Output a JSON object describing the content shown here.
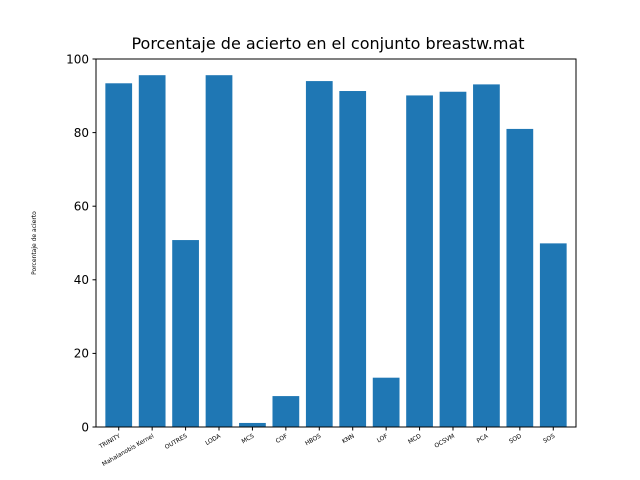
{
  "chart_data": {
    "type": "bar",
    "title": "Porcentaje de acierto en el conjunto breastw.mat",
    "xlabel": "",
    "ylabel": "Porcentaje de acierto",
    "ylim": [
      0,
      100
    ],
    "yticks": [
      0,
      20,
      40,
      60,
      80,
      100
    ],
    "grid": false,
    "bar_color": "#1f77b4",
    "categories": [
      "TRINITY",
      "Mahalanobis Kernel",
      "OUTRES",
      "LODA",
      "MCS",
      "COF",
      "HBOS",
      "KNN",
      "LOF",
      "MCD",
      "OCSVM",
      "PCA",
      "SOD",
      "SOS"
    ],
    "values": [
      93.4,
      95.6,
      50.8,
      95.6,
      1.1,
      8.4,
      94.0,
      91.3,
      13.4,
      90.1,
      91.1,
      93.1,
      81.0,
      49.9
    ]
  }
}
